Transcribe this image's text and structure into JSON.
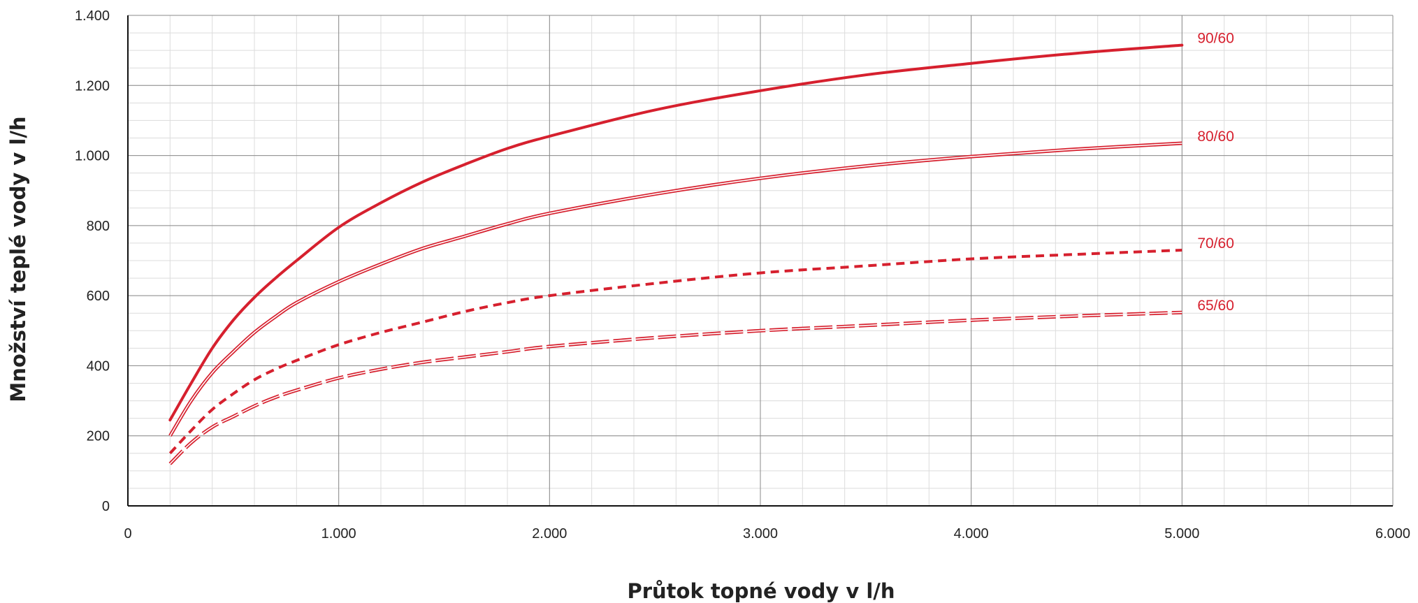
{
  "chart_data": {
    "type": "line",
    "xlabel": "Průtok topné vody v l/h",
    "ylabel": "Množství teplé vody v l/h",
    "xlim": [
      0,
      6000
    ],
    "ylim": [
      0,
      1400
    ],
    "x_ticks": [
      0,
      1000,
      2000,
      3000,
      4000,
      5000,
      6000
    ],
    "x_tick_labels": [
      "0",
      "1.000",
      "2.000",
      "3.000",
      "4.000",
      "5.000",
      "6.000"
    ],
    "y_ticks": [
      0,
      200,
      400,
      600,
      800,
      1000,
      1200,
      1400
    ],
    "y_tick_labels": [
      "0",
      "200",
      "400",
      "600",
      "800",
      "1.000",
      "1.200",
      "1.400"
    ],
    "grid": true,
    "legend": "inline labels at line ends (right)",
    "line_color": "#d6202e",
    "series": [
      {
        "name": "90/60",
        "style": "solid-thick",
        "x": [
          200,
          300,
          400,
          500,
          600,
          700,
          800,
          1000,
          1200,
          1400,
          1600,
          1800,
          2000,
          2500,
          3000,
          3500,
          4000,
          4500,
          5000
        ],
        "y": [
          245,
          350,
          450,
          530,
          595,
          650,
          700,
          795,
          865,
          925,
          975,
          1020,
          1055,
          1130,
          1185,
          1230,
          1263,
          1292,
          1315
        ]
      },
      {
        "name": "80/60",
        "style": "double",
        "x": [
          200,
          300,
          400,
          500,
          600,
          700,
          800,
          1000,
          1200,
          1400,
          1600,
          1800,
          2000,
          2500,
          3000,
          3500,
          4000,
          4500,
          5000
        ],
        "y": [
          200,
          300,
          380,
          440,
          495,
          540,
          580,
          640,
          690,
          735,
          770,
          805,
          835,
          890,
          935,
          970,
          997,
          1018,
          1035
        ]
      },
      {
        "name": "70/60",
        "style": "dashed-thick",
        "x": [
          200,
          300,
          400,
          500,
          600,
          700,
          800,
          1000,
          1200,
          1400,
          1600,
          1800,
          2000,
          2500,
          3000,
          3500,
          4000,
          4500,
          5000
        ],
        "y": [
          150,
          215,
          275,
          320,
          360,
          390,
          415,
          460,
          495,
          525,
          555,
          580,
          600,
          635,
          665,
          685,
          705,
          718,
          730
        ]
      },
      {
        "name": "65/60",
        "style": "dashed-double",
        "x": [
          200,
          300,
          400,
          500,
          600,
          700,
          800,
          1000,
          1200,
          1400,
          1600,
          1800,
          2000,
          2500,
          3000,
          3500,
          4000,
          4500,
          5000
        ],
        "y": [
          120,
          180,
          225,
          255,
          285,
          310,
          330,
          365,
          390,
          410,
          425,
          440,
          455,
          480,
          500,
          515,
          530,
          542,
          552
        ]
      }
    ]
  }
}
